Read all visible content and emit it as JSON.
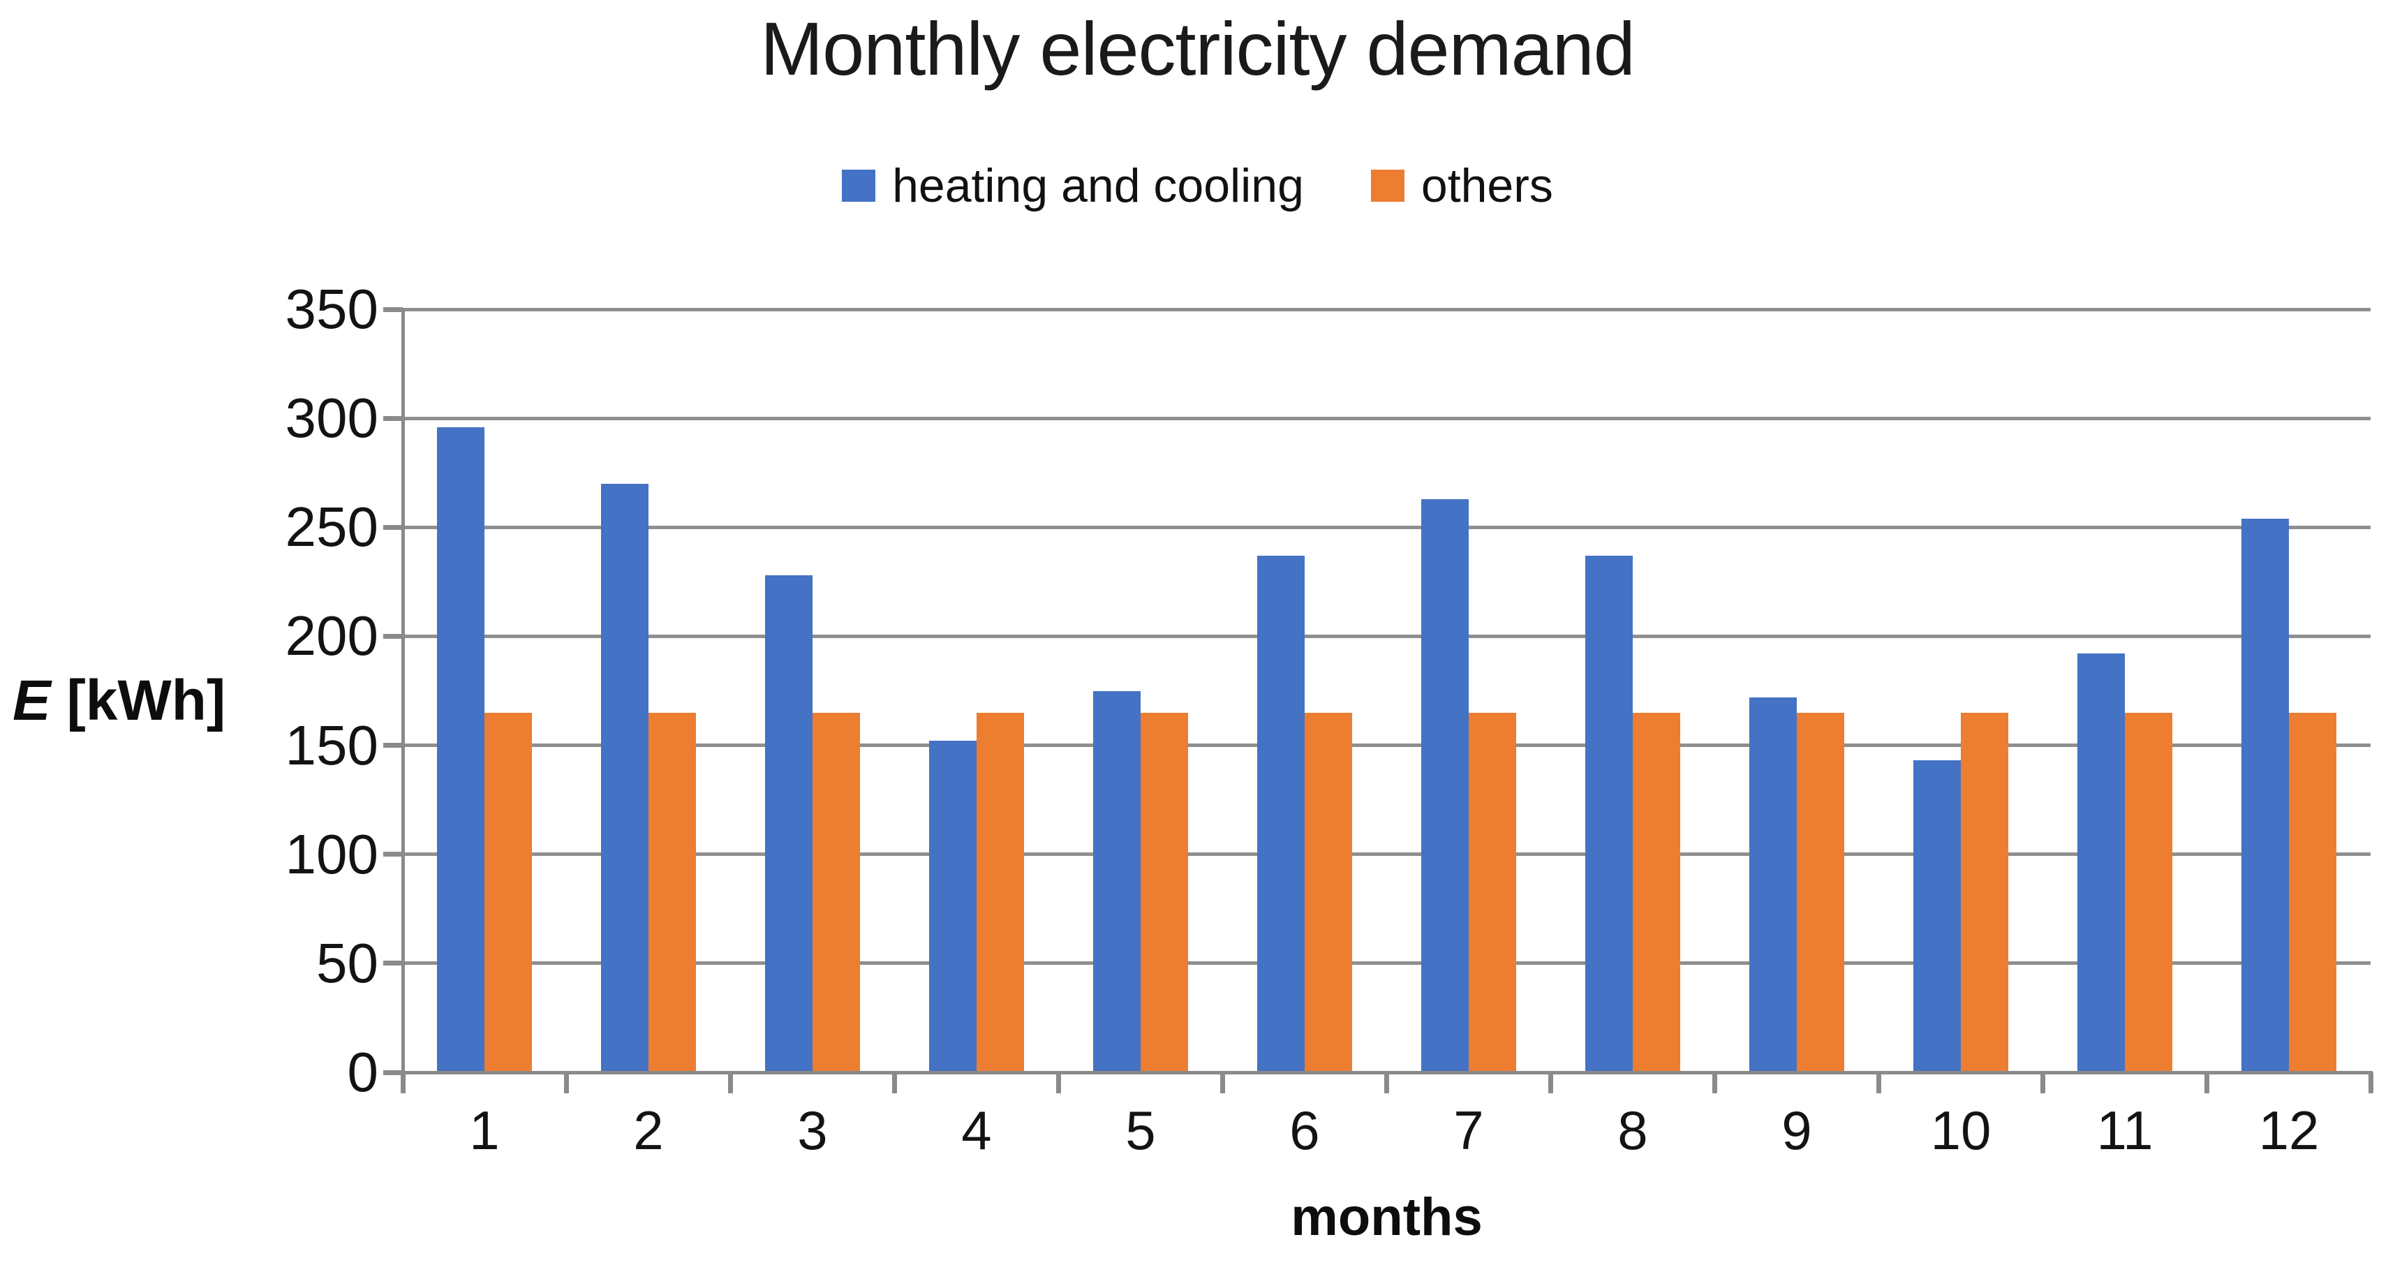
{
  "title": "Monthly electricity demand",
  "legend": {
    "items": [
      {
        "label": "heating and cooling",
        "color": "#4472C4"
      },
      {
        "label": "others",
        "color": "#ED7D31"
      }
    ]
  },
  "axis_titles": {
    "y_symbol": "E",
    "y_unit": " [kWh]",
    "x": "months"
  },
  "chart_data": {
    "type": "bar",
    "title": "Monthly electricity demand",
    "categories": [
      "1",
      "2",
      "3",
      "4",
      "5",
      "6",
      "7",
      "8",
      "9",
      "10",
      "11",
      "12"
    ],
    "series": [
      {
        "name": "heating and cooling",
        "color": "#4472C4",
        "values": [
          296,
          270,
          228,
          152,
          175,
          237,
          263,
          237,
          172,
          143,
          192,
          254
        ]
      },
      {
        "name": "others",
        "color": "#ED7D31",
        "values": [
          165,
          165,
          165,
          165,
          165,
          165,
          165,
          165,
          165,
          165,
          165,
          165
        ]
      }
    ],
    "xlabel": "months",
    "ylabel": "E [kWh]",
    "ylim": [
      0,
      350
    ],
    "ytick_step": 50,
    "yticks": [
      0,
      50,
      100,
      150,
      200,
      250,
      300,
      350
    ],
    "grid": true,
    "legend_position": "top",
    "grid_color": "#8f8f8f",
    "axis_color": "#8a8a8a",
    "text_color": "#131313"
  }
}
